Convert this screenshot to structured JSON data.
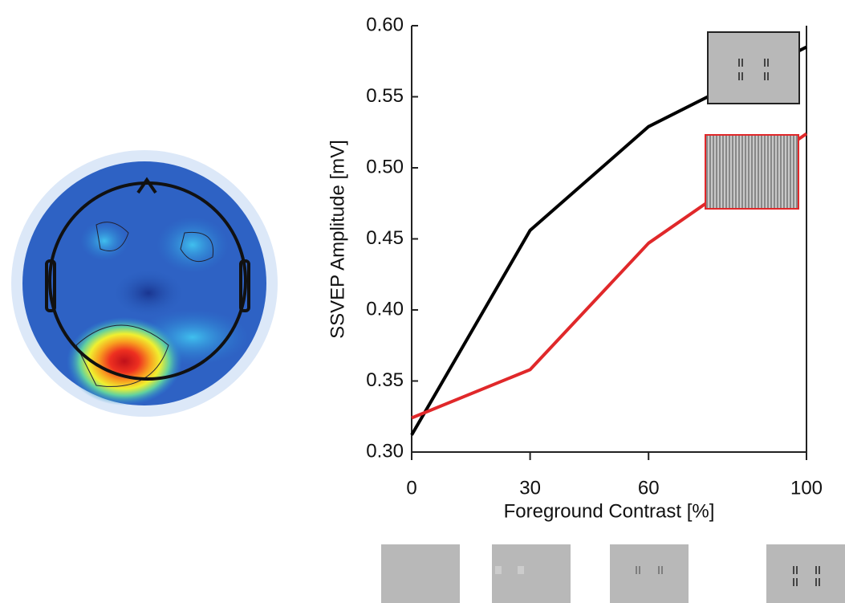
{
  "chart_data": {
    "type": "line",
    "xlabel": "Foreground Contrast [%]",
    "ylabel": "SSVEP Amplitude [mV]",
    "x": [
      0,
      30,
      60,
      100
    ],
    "series": [
      {
        "color": "#000000",
        "values": [
          0.312,
          0.456,
          0.529,
          0.585
        ]
      },
      {
        "color": "#e0282a",
        "values": [
          0.324,
          0.358,
          0.447,
          0.524
        ]
      }
    ],
    "xlim": [
      0,
      100
    ],
    "xticks": [
      0,
      30,
      60,
      100
    ],
    "ylim": [
      0.3,
      0.6
    ],
    "yticks": [
      {
        "value": 0.3,
        "label": "0.30"
      },
      0.35,
      {
        "value": 0.4,
        "label": "0.40"
      },
      0.45,
      {
        "value": 0.5,
        "label": "0.50"
      },
      0.55,
      {
        "value": 0.6,
        "label": "0.60"
      }
    ],
    "grid": false
  }
}
